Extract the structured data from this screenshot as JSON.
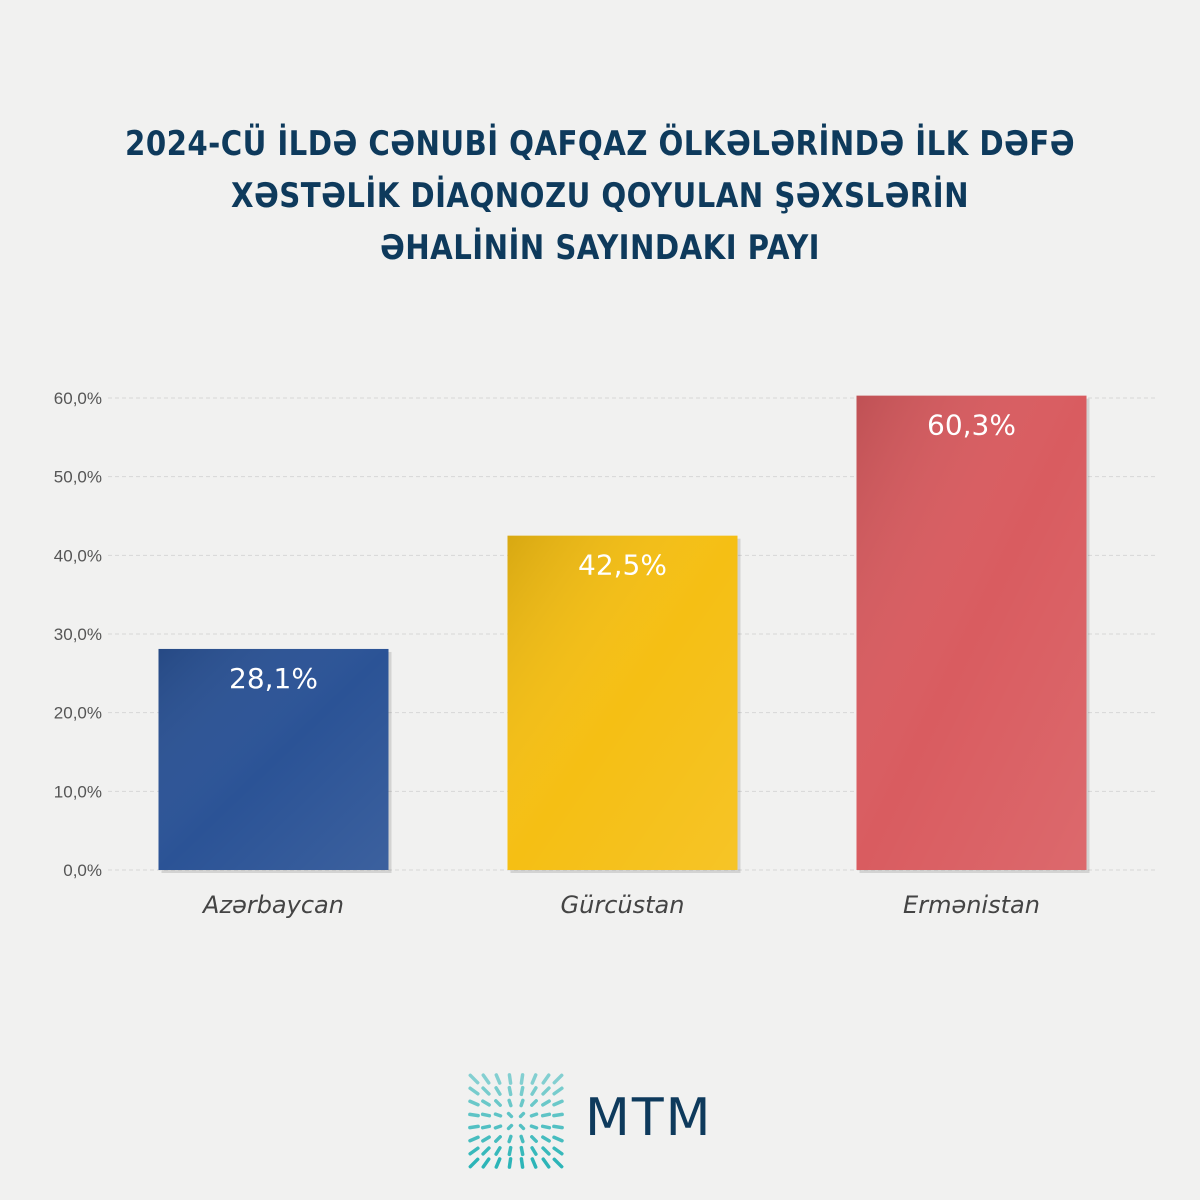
{
  "title_lines": [
    "2024-CÜ İLDƏ CƏNUBİ QAFQAZ ÖLKƏLƏRİNDƏ İLK DƏFƏ",
    "XƏSTƏLİK DİAQNOZU QOYULAN ŞƏXSLƏRİN",
    "ƏHALİNİN SAYINDAKI PAYI"
  ],
  "chart_data": {
    "type": "bar",
    "title": "2024-CÜ İLDƏ CƏNUBİ QAFQAZ ÖLKƏLƏRİNDƏ İLK DƏFƏ XƏSTƏLİK DİAQNOZU QOYULAN ŞƏXSLƏRİN ƏHALİNİN SAYINDAKI PAYI",
    "categories": [
      "Azərbaycan",
      "Gürcüstan",
      "Ermənistan"
    ],
    "values": [
      28.1,
      42.5,
      60.3
    ],
    "data_labels": [
      "28,1%",
      "42,5%",
      "60,3%"
    ],
    "colors": [
      "#2b5396",
      "#f5bf14",
      "#d95c60"
    ],
    "ylim": [
      0,
      60
    ],
    "yticks": [
      0,
      10,
      20,
      30,
      40,
      50,
      60
    ],
    "ytick_labels": [
      "0,0%",
      "10,0%",
      "20,0%",
      "30,0%",
      "40,0%",
      "50,0%",
      "60,0%"
    ],
    "grid": true,
    "xlabel": "",
    "ylabel": ""
  },
  "logo": {
    "text": "MTM",
    "color": "#2bb5b8"
  }
}
